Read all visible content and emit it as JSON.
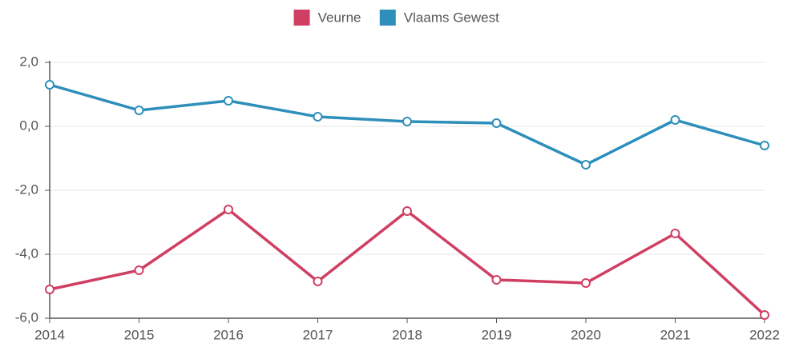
{
  "chart_data": {
    "type": "line",
    "categories": [
      "2014",
      "2015",
      "2016",
      "2017",
      "2018",
      "2019",
      "2020",
      "2021",
      "2022"
    ],
    "series": [
      {
        "name": "Veurne",
        "color": "#d03f62",
        "values": [
          -5.1,
          -4.5,
          -2.6,
          -4.85,
          -2.65,
          -4.8,
          -4.9,
          -3.35,
          -5.9
        ]
      },
      {
        "name": "Vlaams Gewest",
        "color": "#2e8fba",
        "values": [
          1.3,
          0.5,
          0.8,
          0.3,
          0.15,
          0.1,
          -1.2,
          0.2,
          -0.6
        ]
      }
    ],
    "ylim": [
      -6,
      2
    ],
    "yticks": [
      {
        "value": -6,
        "label": "-6,0"
      },
      {
        "value": -4,
        "label": "-4,0"
      },
      {
        "value": -2,
        "label": "-2,0"
      },
      {
        "value": 0,
        "label": "0,0"
      },
      {
        "value": 2,
        "label": "2,0"
      }
    ],
    "grid": true,
    "legend": "top"
  }
}
